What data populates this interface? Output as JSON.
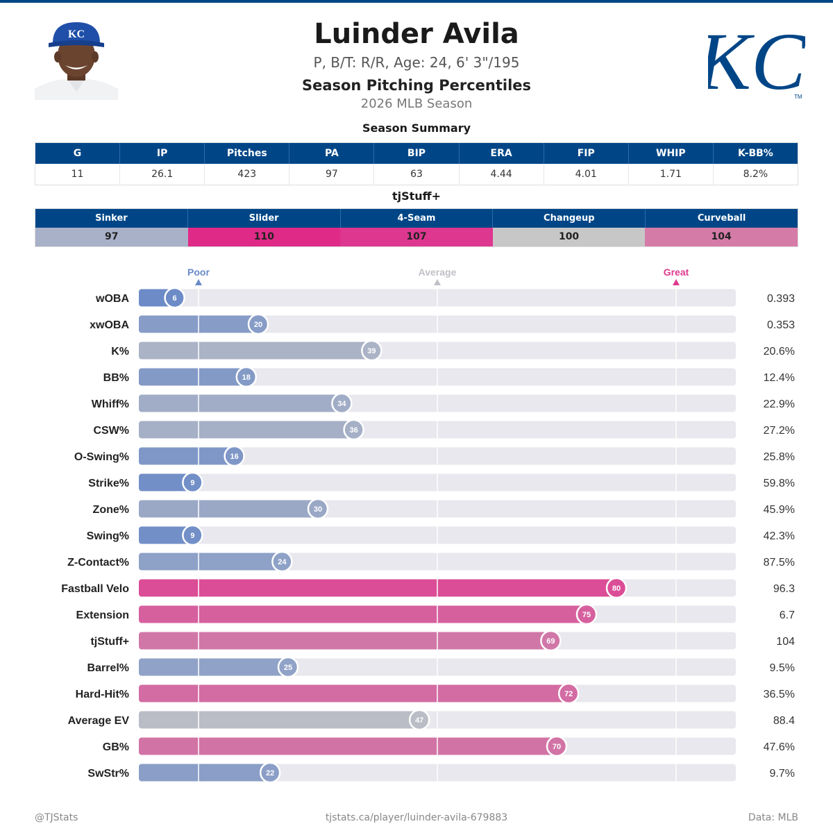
{
  "player": {
    "name": "Luinder Avila",
    "bio": "P, B/T: R/R, Age: 24, 6' 3\"/195"
  },
  "header": {
    "subtitle": "Season Pitching Percentiles",
    "season": "2026 MLB Season"
  },
  "team_logo": {
    "text": "KC",
    "color": "#004687"
  },
  "summary": {
    "title": "Season Summary",
    "columns": [
      "G",
      "IP",
      "Pitches",
      "PA",
      "BIP",
      "ERA",
      "FIP",
      "WHIP",
      "K-BB%"
    ],
    "values": [
      "11",
      "26.1",
      "423",
      "97",
      "63",
      "4.44",
      "4.01",
      "1.71",
      "8.2%"
    ]
  },
  "tjstuff": {
    "title": "tjStuff+",
    "pitches": [
      {
        "name": "Sinker",
        "value": "97",
        "color": "#a9b1c9"
      },
      {
        "name": "Slider",
        "value": "110",
        "color": "#df2a87"
      },
      {
        "name": "4-Seam",
        "value": "107",
        "color": "#dd3790"
      },
      {
        "name": "Changeup",
        "value": "100",
        "color": "#c7c7c7"
      },
      {
        "name": "Curveball",
        "value": "104",
        "color": "#d57ba8"
      }
    ]
  },
  "colors": {
    "header_bg": "#004687",
    "poor": "#6a8ac7",
    "average": "#c0c0c6",
    "great": "#df3a8e",
    "track": "#e8e8ee"
  },
  "chart_data": {
    "type": "bar",
    "orientation": "horizontal",
    "xlim": [
      0,
      100
    ],
    "reference_lines": [
      {
        "label": "Poor",
        "value": 10,
        "color": "#6a8ac7"
      },
      {
        "label": "Average",
        "value": 50,
        "color": "#c0c0c6"
      },
      {
        "label": "Great",
        "value": 90,
        "color": "#df3a8e"
      }
    ],
    "metrics": [
      {
        "label": "wOBA",
        "percentile": 6,
        "value": "0.393"
      },
      {
        "label": "xwOBA",
        "percentile": 20,
        "value": "0.353"
      },
      {
        "label": "K%",
        "percentile": 39,
        "value": "20.6%"
      },
      {
        "label": "BB%",
        "percentile": 18,
        "value": "12.4%"
      },
      {
        "label": "Whiff%",
        "percentile": 34,
        "value": "22.9%"
      },
      {
        "label": "CSW%",
        "percentile": 36,
        "value": "27.2%"
      },
      {
        "label": "O-Swing%",
        "percentile": 16,
        "value": "25.8%"
      },
      {
        "label": "Strike%",
        "percentile": 9,
        "value": "59.8%"
      },
      {
        "label": "Zone%",
        "percentile": 30,
        "value": "45.9%"
      },
      {
        "label": "Swing%",
        "percentile": 9,
        "value": "42.3%"
      },
      {
        "label": "Z-Contact%",
        "percentile": 24,
        "value": "87.5%"
      },
      {
        "label": "Fastball Velo",
        "percentile": 80,
        "value": "96.3"
      },
      {
        "label": "Extension",
        "percentile": 75,
        "value": "6.7"
      },
      {
        "label": "tjStuff+",
        "percentile": 69,
        "value": "104"
      },
      {
        "label": "Barrel%",
        "percentile": 25,
        "value": "9.5%"
      },
      {
        "label": "Hard-Hit%",
        "percentile": 72,
        "value": "36.5%"
      },
      {
        "label": "Average EV",
        "percentile": 47,
        "value": "88.4"
      },
      {
        "label": "GB%",
        "percentile": 70,
        "value": "47.6%"
      },
      {
        "label": "SwStr%",
        "percentile": 22,
        "value": "9.7%"
      }
    ]
  },
  "footer": {
    "left": "@TJStats",
    "center": "tjstats.ca/player/luinder-avila-679883",
    "right": "Data: MLB"
  }
}
